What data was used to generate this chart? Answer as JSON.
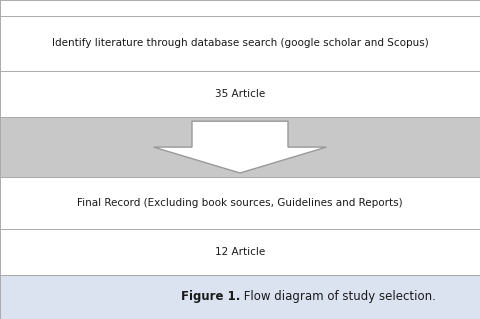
{
  "fig_width": 4.8,
  "fig_height": 3.19,
  "dpi": 100,
  "bg_color": "#ffffff",
  "border_color": "#aaaaaa",
  "row1_text": "Identify literature through database search (google scholar and Scopus)",
  "row2_text": "35 Article",
  "row3_bg": "#c8c8c8",
  "row4_text": "Final Record (Excluding book sources, Guidelines and Reports)",
  "row5_text": "12 Article",
  "caption_bold": "Figure 1.",
  "caption_normal": " Flow diagram of study selection.",
  "caption_bg": "#dce3f0",
  "arrow_color": "#ffffff",
  "arrow_edge_color": "#999999",
  "text_color": "#1a1a1a",
  "font_size_main": 7.5,
  "font_size_caption": 8.5
}
